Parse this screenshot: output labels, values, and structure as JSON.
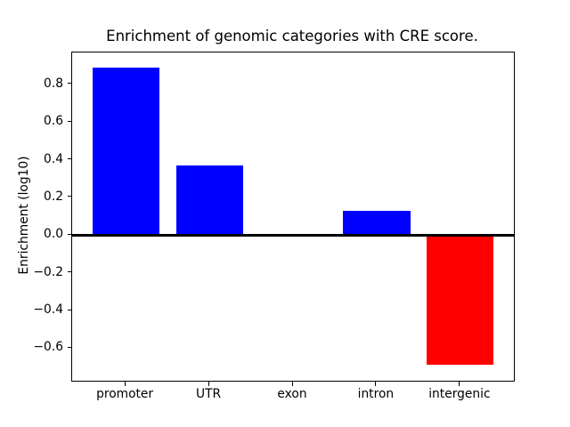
{
  "chart_data": {
    "type": "bar",
    "title": "Enrichment of genomic categories with CRE score.",
    "xlabel": "",
    "ylabel": "Enrichment (log10)",
    "categories": [
      "promoter",
      "UTR",
      "exon",
      "intron",
      "intergenic"
    ],
    "values": [
      0.89,
      0.37,
      0.0,
      0.13,
      -0.69
    ],
    "bar_colors": [
      "#0000ff",
      "#0000ff",
      "#0000ff",
      "#0000ff",
      "#ff0000"
    ],
    "positive_color": "#0000ff",
    "negative_color": "#ff0000",
    "axis_color": "#000000",
    "background_color": "#ffffff",
    "ylim": [
      -0.773,
      0.969
    ],
    "xlim": [
      -0.64,
      4.64
    ],
    "bar_width": 0.8,
    "yticks": [
      -0.6,
      -0.4,
      -0.2,
      0.0,
      0.2,
      0.4,
      0.6,
      0.8
    ],
    "ytick_labels": [
      "−0.6",
      "−0.4",
      "−0.2",
      "0.0",
      "0.2",
      "0.4",
      "0.6",
      "0.8"
    ],
    "zero_line": true,
    "grid": false,
    "legend": null
  }
}
